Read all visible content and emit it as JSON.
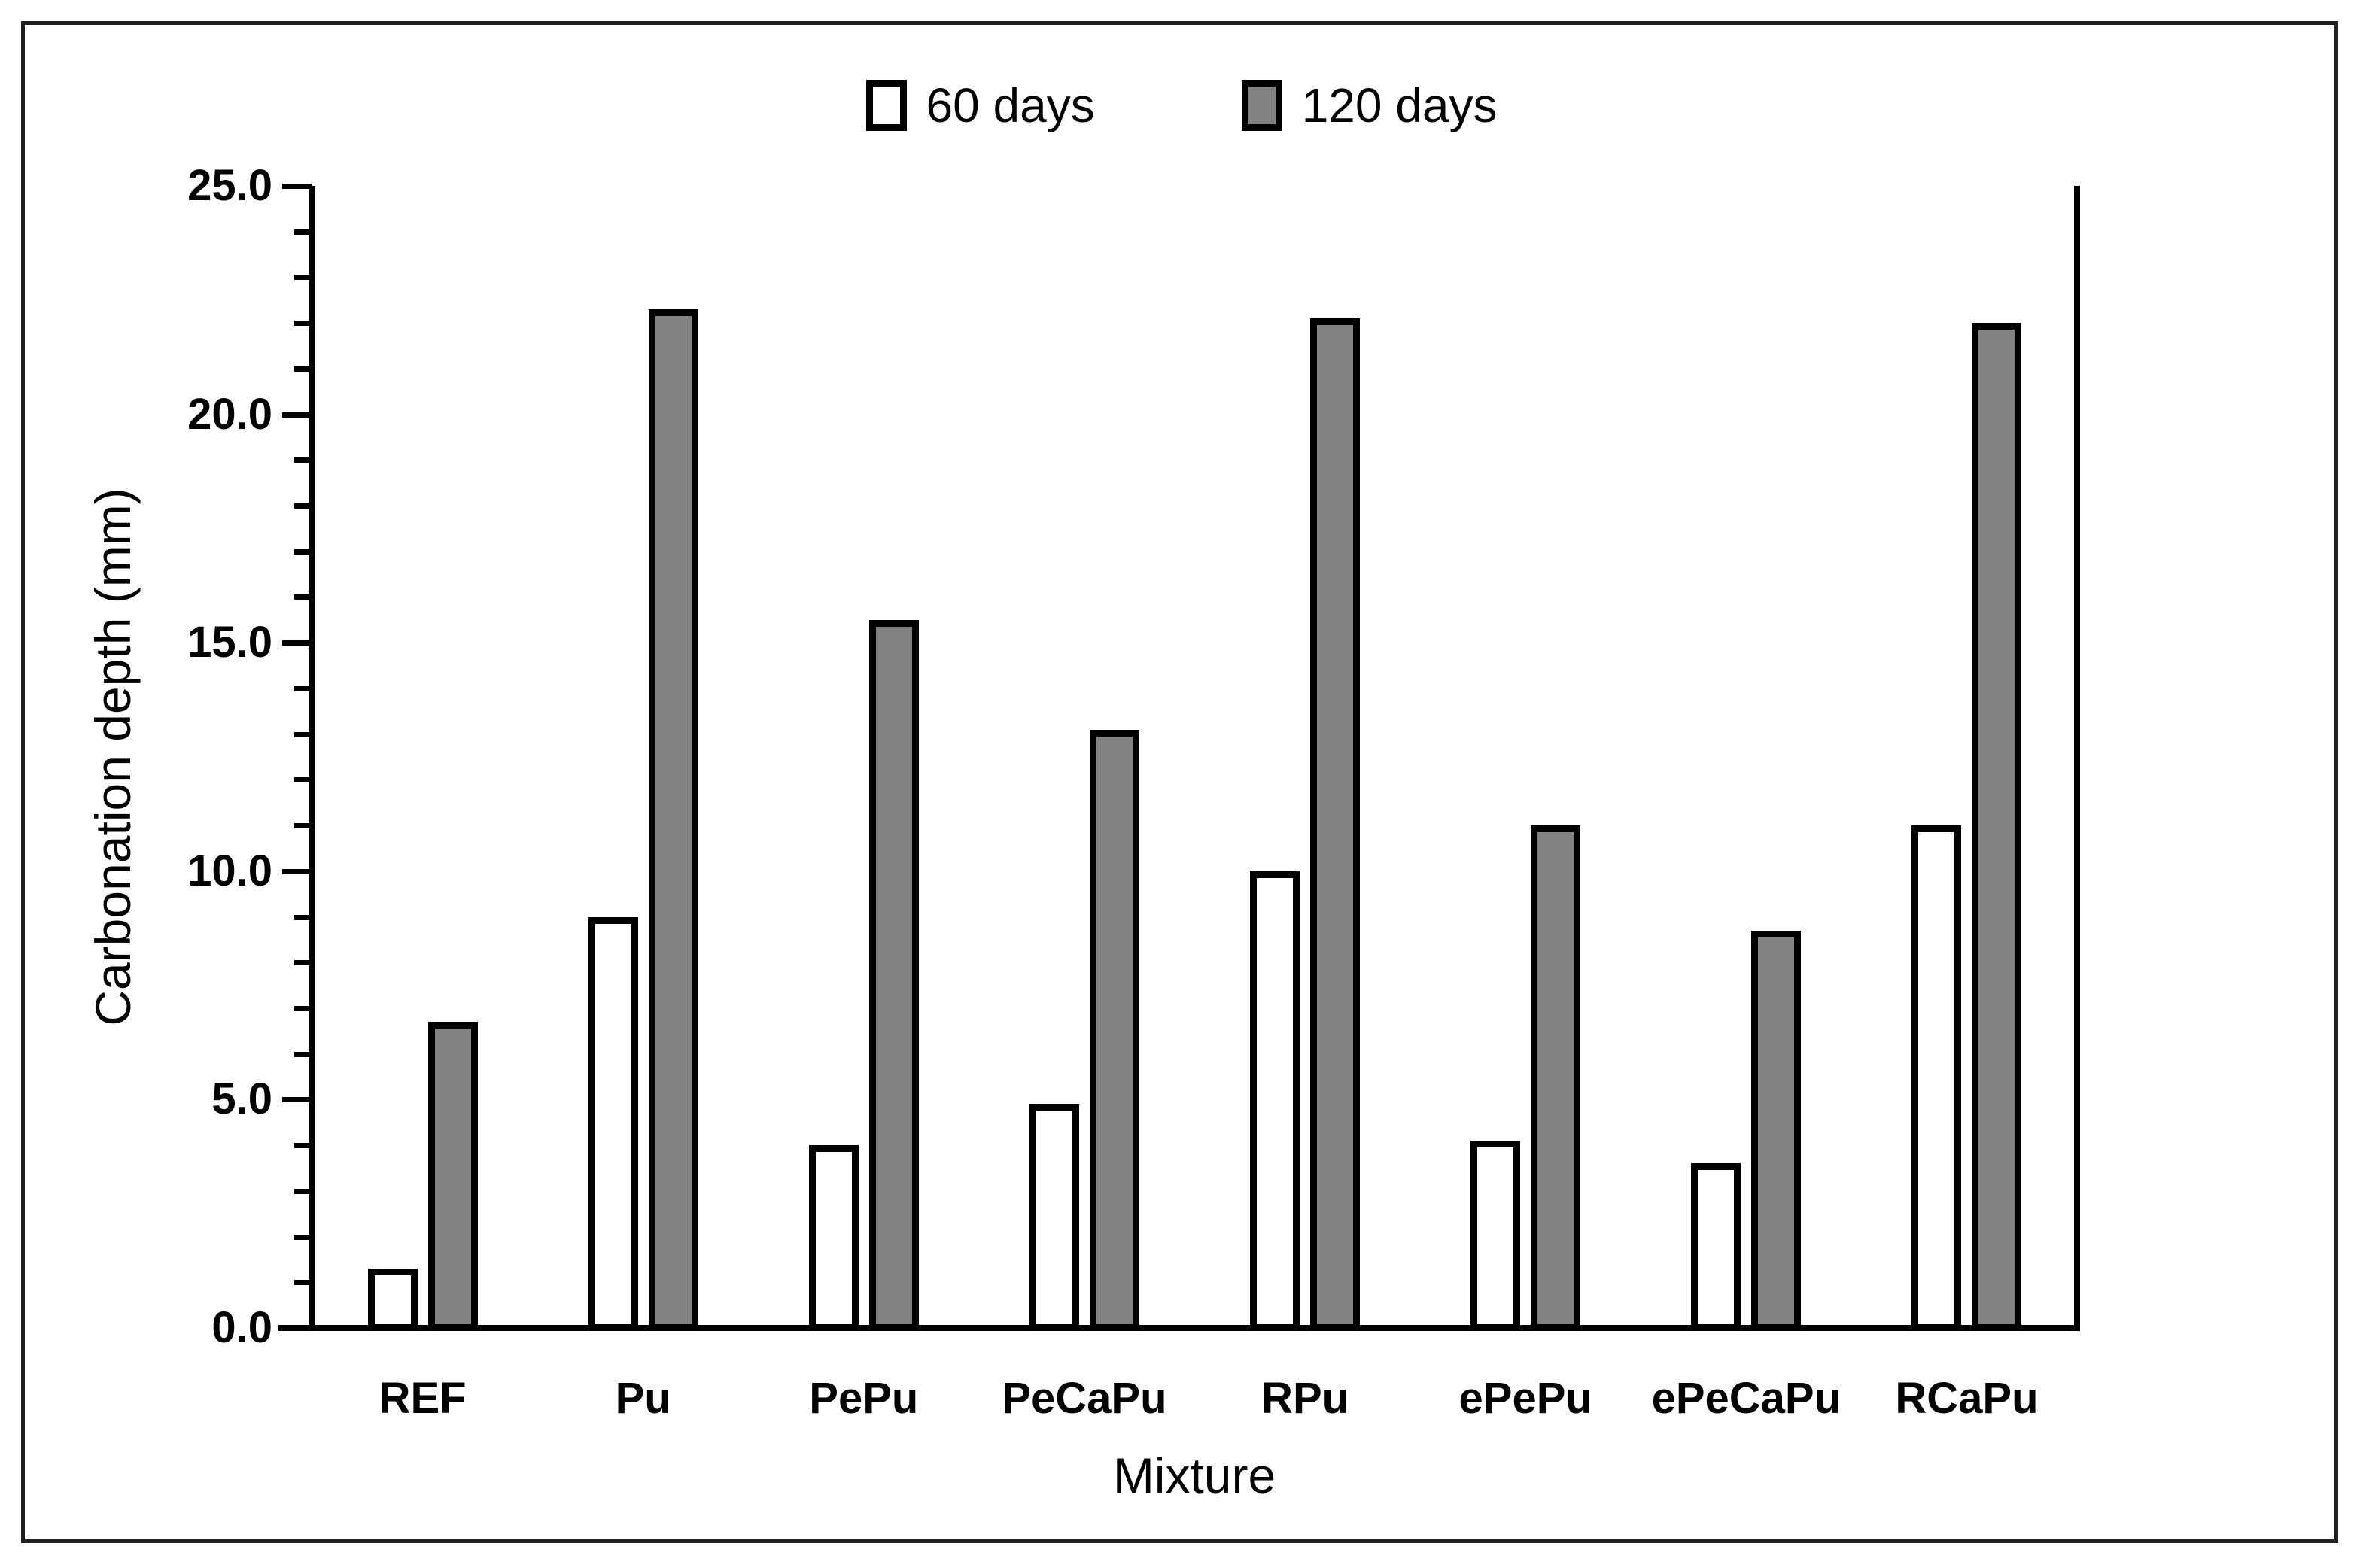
{
  "figure": {
    "kind": "grouped-bar-chart-screenshot"
  },
  "legend": {
    "items": [
      {
        "label": "60 days",
        "color": "#ffffff"
      },
      {
        "label": "120 days",
        "color": "#828282"
      }
    ]
  },
  "colors": {
    "bar_outline": "#000000",
    "series_60_days_fill": "#ffffff",
    "series_120_days_fill": "#828282",
    "axis": "#000000",
    "text": "#000000",
    "background": "#ffffff"
  },
  "chart_data": {
    "type": "bar",
    "title": "",
    "xlabel": "Mixture",
    "ylabel": "Carbonation depth (mm)",
    "ylim": [
      0,
      25
    ],
    "ytick_major_step": 5,
    "ytick_minor_step": 1,
    "ytick_labels": [
      "0.0",
      "5.0",
      "10.0",
      "15.0",
      "20.0",
      "25.0"
    ],
    "grid": false,
    "legend_position": "top-center",
    "categories": [
      "REF",
      "Pu",
      "PePu",
      "PeCaPu",
      "RPu",
      "ePePu",
      "ePeCaPu",
      "RCaPu"
    ],
    "series": [
      {
        "name": "60 days",
        "fill": "#ffffff",
        "values": [
          1.3,
          9.0,
          4.0,
          4.9,
          10.0,
          4.1,
          3.6,
          11.0
        ]
      },
      {
        "name": "120 days",
        "fill": "#828282",
        "values": [
          6.7,
          22.3,
          15.5,
          13.1,
          22.1,
          11.0,
          8.7,
          22.0
        ]
      }
    ]
  }
}
